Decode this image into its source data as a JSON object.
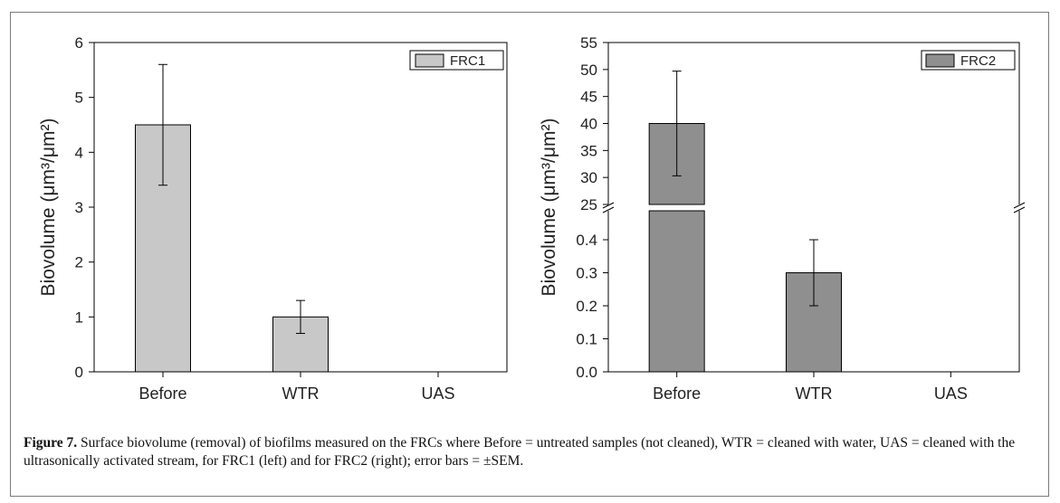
{
  "figure": {
    "caption_label": "Figure 7.",
    "caption_text": "Surface biovolume (removal) of biofilms measured on the FRCs where Before = untreated samples (not cleaned), WTR = cleaned with water, UAS = cleaned with the ultrasonically activated stream, for FRC1 (left) and for FRC2 (right); error bars = ±SEM."
  },
  "chart_data": [
    {
      "type": "bar",
      "categories": [
        "Before",
        "WTR",
        "UAS"
      ],
      "series": [
        {
          "name": "FRC1",
          "values": [
            4.5,
            1.0,
            0
          ],
          "errors": [
            1.1,
            0.3,
            0
          ],
          "color": "#c8c8c8"
        }
      ],
      "ylabel": "Biovolume (μm³/μm²)",
      "ylim": [
        0,
        6
      ],
      "yticks": [
        0,
        1,
        2,
        3,
        4,
        5,
        6
      ],
      "legend_position": "top-right",
      "grid": false
    },
    {
      "type": "bar",
      "categories": [
        "Before",
        "WTR",
        "UAS"
      ],
      "series": [
        {
          "name": "FRC2",
          "values": [
            40.0,
            0.3,
            0
          ],
          "errors": [
            9.7,
            0.1,
            0
          ],
          "color": "#8f8f8f"
        }
      ],
      "ylabel": "Biovolume (μm³/μm²)",
      "axis_break": true,
      "ylim_lower": [
        0,
        0.5
      ],
      "ylim_upper": [
        25,
        55
      ],
      "yticks_lower": [
        "0.0",
        "0.1",
        "0.2",
        "0.3",
        "0.4"
      ],
      "yticks_upper": [
        "25",
        "30",
        "35",
        "40",
        "45",
        "50",
        "55"
      ],
      "legend_position": "top-right",
      "grid": false
    }
  ]
}
